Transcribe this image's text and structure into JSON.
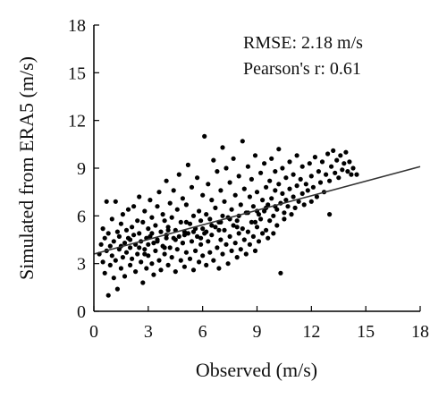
{
  "chart_data": {
    "type": "scatter",
    "title": "",
    "xlabel": "Observed (m/s)",
    "ylabel": "Simulated from ERA5 (m/s)",
    "xlim": [
      0,
      18
    ],
    "ylim": [
      0,
      18
    ],
    "xticks": [
      0,
      3,
      6,
      9,
      12,
      15,
      18
    ],
    "yticks": [
      0,
      3,
      6,
      9,
      12,
      15,
      18
    ],
    "grid": false,
    "annotations": [
      "RMSE: 2.18 m/s",
      "Pearson's r: 0.61"
    ],
    "point_color": "#000000",
    "fit_line": {
      "x": [
        0,
        18
      ],
      "y": [
        3.6,
        9.1
      ]
    },
    "series": [
      {
        "points": [
          [
            0.3,
            3.6
          ],
          [
            0.4,
            4.2
          ],
          [
            0.5,
            3.1
          ],
          [
            0.5,
            5.2
          ],
          [
            0.6,
            2.4
          ],
          [
            0.6,
            4.6
          ],
          [
            0.7,
            3.8
          ],
          [
            0.7,
            6.9
          ],
          [
            0.8,
            1.0
          ],
          [
            0.8,
            4.9
          ],
          [
            0.9,
            2.9
          ],
          [
            0.9,
            4.1
          ],
          [
            1.0,
            3.5
          ],
          [
            1.0,
            5.8
          ],
          [
            1.1,
            2.1
          ],
          [
            1.1,
            4.4
          ],
          [
            1.2,
            6.9
          ],
          [
            1.2,
            3.2
          ],
          [
            1.3,
            5.0
          ],
          [
            1.3,
            1.4
          ],
          [
            1.4,
            3.9
          ],
          [
            1.4,
            4.7
          ],
          [
            1.5,
            2.7
          ],
          [
            1.5,
            5.5
          ],
          [
            1.6,
            3.4
          ],
          [
            1.6,
            6.1
          ],
          [
            1.7,
            4.3
          ],
          [
            1.7,
            2.2
          ],
          [
            1.8,
            5.1
          ],
          [
            1.8,
            3.7
          ],
          [
            1.9,
            4.6
          ],
          [
            1.9,
            6.4
          ],
          [
            2.0,
            2.9
          ],
          [
            2.0,
            4.0
          ],
          [
            2.1,
            5.3
          ],
          [
            2.1,
            3.3
          ],
          [
            2.2,
            4.8
          ],
          [
            2.2,
            6.6
          ],
          [
            2.3,
            2.5
          ],
          [
            2.3,
            4.2
          ],
          [
            2.4,
            5.7
          ],
          [
            2.4,
            3.6
          ],
          [
            2.5,
            4.9
          ],
          [
            2.5,
            7.2
          ],
          [
            2.6,
            3.1
          ],
          [
            2.6,
            4.4
          ],
          [
            2.7,
            1.8
          ],
          [
            2.7,
            5.6
          ],
          [
            2.8,
            3.9
          ],
          [
            2.8,
            6.3
          ],
          [
            2.9,
            4.6
          ],
          [
            2.9,
            2.7
          ],
          [
            3.0,
            5.2
          ],
          [
            3.0,
            3.5
          ],
          [
            3.1,
            4.7
          ],
          [
            3.1,
            7.0
          ],
          [
            3.2,
            3.0
          ],
          [
            3.2,
            5.9
          ],
          [
            3.3,
            4.3
          ],
          [
            3.3,
            2.3
          ],
          [
            3.4,
            5.4
          ],
          [
            3.4,
            3.8
          ],
          [
            3.5,
            6.6
          ],
          [
            3.5,
            4.5
          ],
          [
            3.6,
            3.2
          ],
          [
            3.6,
            7.5
          ],
          [
            3.7,
            5.0
          ],
          [
            3.7,
            2.6
          ],
          [
            3.8,
            4.1
          ],
          [
            3.8,
            6.1
          ],
          [
            3.9,
            3.6
          ],
          [
            3.9,
            5.7
          ],
          [
            4.0,
            4.8
          ],
          [
            4.0,
            8.2
          ],
          [
            4.1,
            2.9
          ],
          [
            4.1,
            5.3
          ],
          [
            4.2,
            4.0
          ],
          [
            4.2,
            6.8
          ],
          [
            4.3,
            3.4
          ],
          [
            4.3,
            5.9
          ],
          [
            4.4,
            4.6
          ],
          [
            4.4,
            7.6
          ],
          [
            4.5,
            2.5
          ],
          [
            4.5,
            5.1
          ],
          [
            4.6,
            3.9
          ],
          [
            4.6,
            6.4
          ],
          [
            4.7,
            4.7
          ],
          [
            4.7,
            8.6
          ],
          [
            4.8,
            3.2
          ],
          [
            4.8,
            5.6
          ],
          [
            4.9,
            4.3
          ],
          [
            4.9,
            7.1
          ],
          [
            5.0,
            2.8
          ],
          [
            5.0,
            5.0
          ],
          [
            5.1,
            3.7
          ],
          [
            5.1,
            6.7
          ],
          [
            5.2,
            4.9
          ],
          [
            5.2,
            9.2
          ],
          [
            5.3,
            3.3
          ],
          [
            5.3,
            5.5
          ],
          [
            5.4,
            4.4
          ],
          [
            5.4,
            7.8
          ],
          [
            5.5,
            2.6
          ],
          [
            5.5,
            6.0
          ],
          [
            5.6,
            3.8
          ],
          [
            5.6,
            5.2
          ],
          [
            5.7,
            4.7
          ],
          [
            5.7,
            8.4
          ],
          [
            5.8,
            3.1
          ],
          [
            5.8,
            6.3
          ],
          [
            5.9,
            4.2
          ],
          [
            5.9,
            5.7
          ],
          [
            6.0,
            3.5
          ],
          [
            6.0,
            7.3
          ],
          [
            6.1,
            4.9
          ],
          [
            6.1,
            11.0
          ],
          [
            6.2,
            2.9
          ],
          [
            6.2,
            6.1
          ],
          [
            6.3,
            4.4
          ],
          [
            6.3,
            8.0
          ],
          [
            6.4,
            3.7
          ],
          [
            6.4,
            5.8
          ],
          [
            6.5,
            4.8
          ],
          [
            6.5,
            7.0
          ],
          [
            6.6,
            3.2
          ],
          [
            6.6,
            9.5
          ],
          [
            6.7,
            5.3
          ],
          [
            6.7,
            6.5
          ],
          [
            6.8,
            4.0
          ],
          [
            6.8,
            8.8
          ],
          [
            6.9,
            2.7
          ],
          [
            6.9,
            5.6
          ],
          [
            7.0,
            4.5
          ],
          [
            7.0,
            7.6
          ],
          [
            7.1,
            3.6
          ],
          [
            7.1,
            10.3
          ],
          [
            7.2,
            5.1
          ],
          [
            7.2,
            6.9
          ],
          [
            7.3,
            4.2
          ],
          [
            7.3,
            9.0
          ],
          [
            7.4,
            3.0
          ],
          [
            7.4,
            5.9
          ],
          [
            7.5,
            4.7
          ],
          [
            7.5,
            8.1
          ],
          [
            7.6,
            3.8
          ],
          [
            7.6,
            6.4
          ],
          [
            7.7,
            5.4
          ],
          [
            7.7,
            9.6
          ],
          [
            7.8,
            4.3
          ],
          [
            7.8,
            7.3
          ],
          [
            7.9,
            3.4
          ],
          [
            7.9,
            5.7
          ],
          [
            8.0,
            4.9
          ],
          [
            8.0,
            8.5
          ],
          [
            8.1,
            3.9
          ],
          [
            8.1,
            6.7
          ],
          [
            8.2,
            5.2
          ],
          [
            8.2,
            10.7
          ],
          [
            8.3,
            4.5
          ],
          [
            8.3,
            7.7
          ],
          [
            8.4,
            3.6
          ],
          [
            8.4,
            6.2
          ],
          [
            8.5,
            5.0
          ],
          [
            8.5,
            9.1
          ],
          [
            8.6,
            4.2
          ],
          [
            8.6,
            7.2
          ],
          [
            8.7,
            5.6
          ],
          [
            8.7,
            8.3
          ],
          [
            8.8,
            4.7
          ],
          [
            8.8,
            6.6
          ],
          [
            8.9,
            3.8
          ],
          [
            8.9,
            9.8
          ],
          [
            9.0,
            5.3
          ],
          [
            9.0,
            7.5
          ],
          [
            9.1,
            4.4
          ],
          [
            9.1,
            6.1
          ],
          [
            9.2,
            5.8
          ],
          [
            9.2,
            8.7
          ],
          [
            9.3,
            4.9
          ],
          [
            9.3,
            7.0
          ],
          [
            9.4,
            6.3
          ],
          [
            9.4,
            9.3
          ],
          [
            9.5,
            5.1
          ],
          [
            9.5,
            7.8
          ],
          [
            9.6,
            6.7
          ],
          [
            9.6,
            4.6
          ],
          [
            9.7,
            8.2
          ],
          [
            9.7,
            5.7
          ],
          [
            9.8,
            7.1
          ],
          [
            9.8,
            9.6
          ],
          [
            9.9,
            6.0
          ],
          [
            9.9,
            4.9
          ],
          [
            10.0,
            7.6
          ],
          [
            10.0,
            8.8
          ],
          [
            10.1,
            6.4
          ],
          [
            10.1,
            5.4
          ],
          [
            10.2,
            8.0
          ],
          [
            10.2,
            10.2
          ],
          [
            10.3,
            6.8
          ],
          [
            10.3,
            2.4
          ],
          [
            10.4,
            7.4
          ],
          [
            10.4,
            9.0
          ],
          [
            10.5,
            6.2
          ],
          [
            10.5,
            5.8
          ],
          [
            10.6,
            8.4
          ],
          [
            10.6,
            7.0
          ],
          [
            10.7,
            6.6
          ],
          [
            10.8,
            9.4
          ],
          [
            10.8,
            7.7
          ],
          [
            10.9,
            6.1
          ],
          [
            11.0,
            8.6
          ],
          [
            11.0,
            7.2
          ],
          [
            11.1,
            6.5
          ],
          [
            11.2,
            9.8
          ],
          [
            11.2,
            7.9
          ],
          [
            11.3,
            6.9
          ],
          [
            11.4,
            8.3
          ],
          [
            11.5,
            7.4
          ],
          [
            11.5,
            9.1
          ],
          [
            11.6,
            6.7
          ],
          [
            11.7,
            8.0
          ],
          [
            11.8,
            7.6
          ],
          [
            11.9,
            9.3
          ],
          [
            12.0,
            6.9
          ],
          [
            12.0,
            8.5
          ],
          [
            12.1,
            7.8
          ],
          [
            12.2,
            9.7
          ],
          [
            12.3,
            7.2
          ],
          [
            12.4,
            8.8
          ],
          [
            12.5,
            8.1
          ],
          [
            12.6,
            9.4
          ],
          [
            12.7,
            7.5
          ],
          [
            12.8,
            8.6
          ],
          [
            12.9,
            9.9
          ],
          [
            13.0,
            6.1
          ],
          [
            13.0,
            8.2
          ],
          [
            13.1,
            9.1
          ],
          [
            13.2,
            10.1
          ],
          [
            13.3,
            8.7
          ],
          [
            13.4,
            9.5
          ],
          [
            13.5,
            8.4
          ],
          [
            13.6,
            9.8
          ],
          [
            13.7,
            8.9
          ],
          [
            13.8,
            9.3
          ],
          [
            13.9,
            10.0
          ],
          [
            14.0,
            8.8
          ],
          [
            14.1,
            9.4
          ],
          [
            14.2,
            8.6
          ],
          [
            14.3,
            9.0
          ],
          [
            14.5,
            8.6
          ],
          [
            1.5,
            4.1
          ],
          [
            2.0,
            4.5
          ],
          [
            2.5,
            4.0
          ],
          [
            3.0,
            4.2
          ],
          [
            3.5,
            4.4
          ],
          [
            4.0,
            4.6
          ],
          [
            4.5,
            4.5
          ],
          [
            5.0,
            4.8
          ],
          [
            5.5,
            5.0
          ],
          [
            6.0,
            5.2
          ],
          [
            6.5,
            5.4
          ],
          [
            7.0,
            5.6
          ],
          [
            7.5,
            5.8
          ],
          [
            8.0,
            6.0
          ],
          [
            8.5,
            6.2
          ],
          [
            9.0,
            6.3
          ],
          [
            9.5,
            6.5
          ],
          [
            10.0,
            6.6
          ],
          [
            3.2,
            4.9
          ],
          [
            4.1,
            5.1
          ],
          [
            5.1,
            5.6
          ],
          [
            6.2,
            5.0
          ],
          [
            7.1,
            6.0
          ],
          [
            2.8,
            3.6
          ],
          [
            3.9,
            4.0
          ],
          [
            4.9,
            4.3
          ],
          [
            5.9,
            4.6
          ],
          [
            6.9,
            5.1
          ],
          [
            7.9,
            5.3
          ],
          [
            8.9,
            5.6
          ]
        ]
      }
    ]
  }
}
